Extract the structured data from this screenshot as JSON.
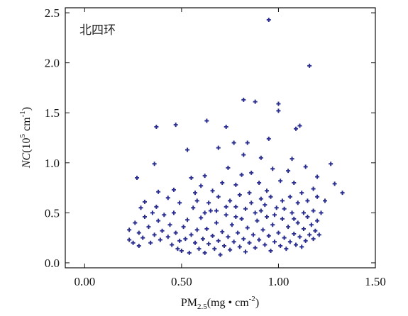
{
  "chart_data": {
    "type": "scatter",
    "title": "",
    "annotation": "北四环",
    "x_axis": {
      "label": {
        "base": "PM",
        "sub": "2.5",
        "rest": "(mg • cm",
        "sup": "-2",
        "close": ")"
      },
      "range": [
        -0.1,
        1.5
      ],
      "ticks": [
        0.0,
        0.5,
        1.0,
        1.5
      ],
      "tick_labels": [
        "0.00",
        "0.50",
        "1.00",
        "1.50"
      ]
    },
    "y_axis": {
      "label": {
        "italic": "NC",
        "rest": "(10",
        "sup1": "5",
        "mid": " cm",
        "sup2": "-1",
        "close": ")"
      },
      "range": [
        -0.05,
        2.55
      ],
      "ticks": [
        0.0,
        0.5,
        1.0,
        1.5,
        2.0,
        2.5
      ],
      "tick_labels": [
        "0.0",
        "0.5",
        "1.0",
        "1.5",
        "2.0",
        "2.5"
      ]
    },
    "grid": false,
    "legend": "none",
    "marker_color": "#2b2f8f",
    "marker_symbol": "+",
    "series": [
      {
        "points": [
          [
            0.95,
            2.43
          ],
          [
            1.16,
            1.97
          ],
          [
            0.82,
            1.63
          ],
          [
            0.88,
            1.61
          ],
          [
            1.0,
            1.59
          ],
          [
            1.0,
            1.52
          ],
          [
            0.63,
            1.42
          ],
          [
            0.37,
            1.36
          ],
          [
            0.47,
            1.38
          ],
          [
            0.73,
            1.36
          ],
          [
            1.09,
            1.34
          ],
          [
            1.11,
            1.37
          ],
          [
            0.95,
            1.24
          ],
          [
            0.84,
            1.2
          ],
          [
            0.77,
            1.2
          ],
          [
            0.82,
            1.08
          ],
          [
            0.53,
            1.13
          ],
          [
            0.69,
            1.15
          ],
          [
            1.27,
            0.99
          ],
          [
            0.36,
            0.99
          ],
          [
            0.27,
            0.85
          ],
          [
            1.2,
            0.86
          ],
          [
            1.07,
            1.04
          ],
          [
            0.91,
            1.05
          ],
          [
            1.33,
            0.7
          ],
          [
            1.29,
            0.79
          ],
          [
            0.38,
            0.71
          ],
          [
            0.46,
            0.73
          ],
          [
            0.55,
            0.85
          ],
          [
            0.62,
            0.87
          ],
          [
            0.74,
            0.95
          ],
          [
            0.86,
            0.9
          ],
          [
            0.97,
            0.94
          ],
          [
            1.05,
            0.92
          ],
          [
            1.14,
            0.96
          ],
          [
            1.18,
            0.74
          ],
          [
            1.24,
            0.62
          ],
          [
            1.22,
            0.5
          ],
          [
            1.2,
            0.66
          ],
          [
            0.31,
            0.61
          ],
          [
            0.29,
            0.55
          ],
          [
            0.43,
            0.65
          ],
          [
            0.49,
            0.6
          ],
          [
            0.57,
            0.7
          ],
          [
            0.6,
            0.77
          ],
          [
            0.66,
            0.72
          ],
          [
            0.71,
            0.8
          ],
          [
            0.78,
            0.78
          ],
          [
            0.81,
            0.88
          ],
          [
            0.9,
            0.8
          ],
          [
            0.94,
            0.72
          ],
          [
            1.01,
            0.82
          ],
          [
            1.08,
            0.8
          ],
          [
            1.12,
            0.7
          ],
          [
            0.23,
            0.23
          ],
          [
            0.23,
            0.33
          ],
          [
            0.25,
            0.2
          ],
          [
            0.26,
            0.4
          ],
          [
            0.28,
            0.3
          ],
          [
            0.28,
            0.17
          ],
          [
            0.3,
            0.25
          ],
          [
            0.31,
            0.46
          ],
          [
            0.33,
            0.36
          ],
          [
            0.34,
            0.2
          ],
          [
            0.35,
            0.5
          ],
          [
            0.36,
            0.28
          ],
          [
            0.37,
            0.56
          ],
          [
            0.38,
            0.42
          ],
          [
            0.39,
            0.23
          ],
          [
            0.4,
            0.32
          ],
          [
            0.41,
            0.48
          ],
          [
            0.43,
            0.26
          ],
          [
            0.44,
            0.38
          ],
          [
            0.45,
            0.18
          ],
          [
            0.46,
            0.5
          ],
          [
            0.47,
            0.3
          ],
          [
            0.48,
            0.14
          ],
          [
            0.49,
            0.22
          ],
          [
            0.5,
            0.12
          ],
          [
            0.51,
            0.36
          ],
          [
            0.52,
            0.24
          ],
          [
            0.53,
            0.43
          ],
          [
            0.54,
            0.1
          ],
          [
            0.55,
            0.28
          ],
          [
            0.56,
            0.55
          ],
          [
            0.57,
            0.2
          ],
          [
            0.58,
            0.33
          ],
          [
            0.59,
            0.14
          ],
          [
            0.6,
            0.45
          ],
          [
            0.61,
            0.24
          ],
          [
            0.62,
            0.1
          ],
          [
            0.63,
            0.34
          ],
          [
            0.64,
            0.19
          ],
          [
            0.65,
            0.52
          ],
          [
            0.66,
            0.27
          ],
          [
            0.67,
            0.14
          ],
          [
            0.68,
            0.4
          ],
          [
            0.69,
            0.22
          ],
          [
            0.7,
            0.08
          ],
          [
            0.71,
            0.31
          ],
          [
            0.72,
            0.17
          ],
          [
            0.73,
            0.48
          ],
          [
            0.74,
            0.26
          ],
          [
            0.75,
            0.13
          ],
          [
            0.76,
            0.38
          ],
          [
            0.77,
            0.21
          ],
          [
            0.78,
            0.56
          ],
          [
            0.79,
            0.3
          ],
          [
            0.8,
            0.16
          ],
          [
            0.81,
            0.44
          ],
          [
            0.82,
            0.24
          ],
          [
            0.83,
            0.11
          ],
          [
            0.84,
            0.35
          ],
          [
            0.85,
            0.2
          ],
          [
            0.86,
            0.6
          ],
          [
            0.87,
            0.28
          ],
          [
            0.88,
            0.15
          ],
          [
            0.89,
            0.42
          ],
          [
            0.9,
            0.23
          ],
          [
            0.91,
            0.52
          ],
          [
            0.92,
            0.33
          ],
          [
            0.93,
            0.18
          ],
          [
            0.94,
            0.46
          ],
          [
            0.95,
            0.27
          ],
          [
            0.96,
            0.12
          ],
          [
            0.97,
            0.38
          ],
          [
            0.98,
            0.21
          ],
          [
            0.99,
            0.55
          ],
          [
            1.0,
            0.3
          ],
          [
            1.01,
            0.17
          ],
          [
            1.02,
            0.44
          ],
          [
            1.03,
            0.25
          ],
          [
            1.04,
            0.14
          ],
          [
            1.05,
            0.36
          ],
          [
            1.06,
            0.21
          ],
          [
            1.07,
            0.5
          ],
          [
            1.08,
            0.29
          ],
          [
            1.09,
            0.18
          ],
          [
            1.1,
            0.4
          ],
          [
            1.11,
            0.26
          ],
          [
            1.12,
            0.16
          ],
          [
            1.13,
            0.34
          ],
          [
            1.14,
            0.22
          ],
          [
            1.15,
            0.46
          ],
          [
            1.16,
            0.28
          ],
          [
            1.17,
            0.38
          ],
          [
            1.18,
            0.24
          ],
          [
            1.19,
            0.32
          ],
          [
            1.2,
            0.42
          ],
          [
            1.21,
            0.28
          ],
          [
            0.58,
            0.62
          ],
          [
            0.64,
            0.6
          ],
          [
            0.69,
            0.66
          ],
          [
            0.75,
            0.62
          ],
          [
            0.8,
            0.68
          ],
          [
            0.85,
            0.7
          ],
          [
            0.91,
            0.64
          ],
          [
            0.96,
            0.66
          ],
          [
            1.02,
            0.62
          ],
          [
            1.06,
            0.66
          ],
          [
            1.1,
            0.6
          ],
          [
            1.15,
            0.62
          ],
          [
            0.62,
            0.5
          ],
          [
            0.68,
            0.52
          ],
          [
            0.73,
            0.56
          ],
          [
            0.78,
            0.46
          ],
          [
            0.83,
            0.54
          ],
          [
            0.88,
            0.5
          ],
          [
            0.93,
            0.58
          ],
          [
            0.98,
            0.48
          ],
          [
            1.03,
            0.54
          ],
          [
            1.08,
            0.44
          ],
          [
            1.13,
            0.5
          ],
          [
            1.18,
            0.52
          ]
        ]
      }
    ]
  }
}
